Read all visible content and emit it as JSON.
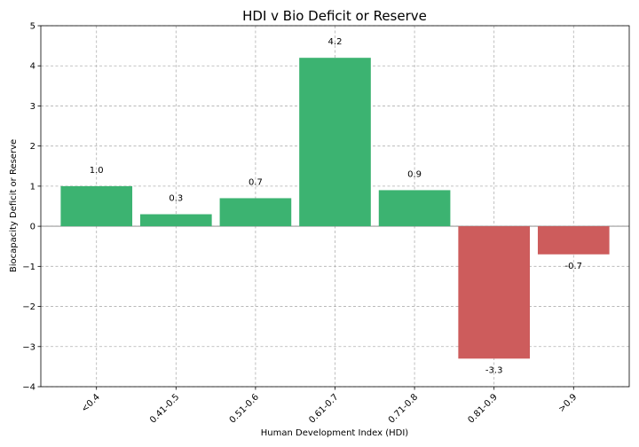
{
  "chart_data": {
    "type": "bar",
    "title": "HDI v Bio Deficit or Reserve",
    "xlabel": "Human Development Index (HDI)",
    "ylabel": "Biocapacity Deficit or Reserve",
    "categories": [
      "<0.4",
      "0.41-0.5",
      "0.51-0.6",
      "0.61-0.7",
      "0.71-0.8",
      "0.81-0.9",
      ">0.9"
    ],
    "values": [
      1.0,
      0.3,
      0.7,
      4.2,
      0.9,
      -3.3,
      -0.7
    ],
    "data_labels": [
      "1.0",
      "0.3",
      "0.7",
      "4.2",
      "0.9",
      "-3.3",
      "-0.7"
    ],
    "ylim": [
      -4,
      5
    ],
    "yticks": [
      -4,
      -3,
      -2,
      -1,
      0,
      1,
      2,
      3,
      4,
      5
    ],
    "ytick_labels": [
      "−4",
      "−3",
      "−2",
      "−1",
      "0",
      "1",
      "2",
      "3",
      "4",
      "5"
    ],
    "grid": true,
    "colors": {
      "positive": "#3cb371",
      "negative": "#cd5c5c",
      "zero_line": "#808080"
    }
  }
}
